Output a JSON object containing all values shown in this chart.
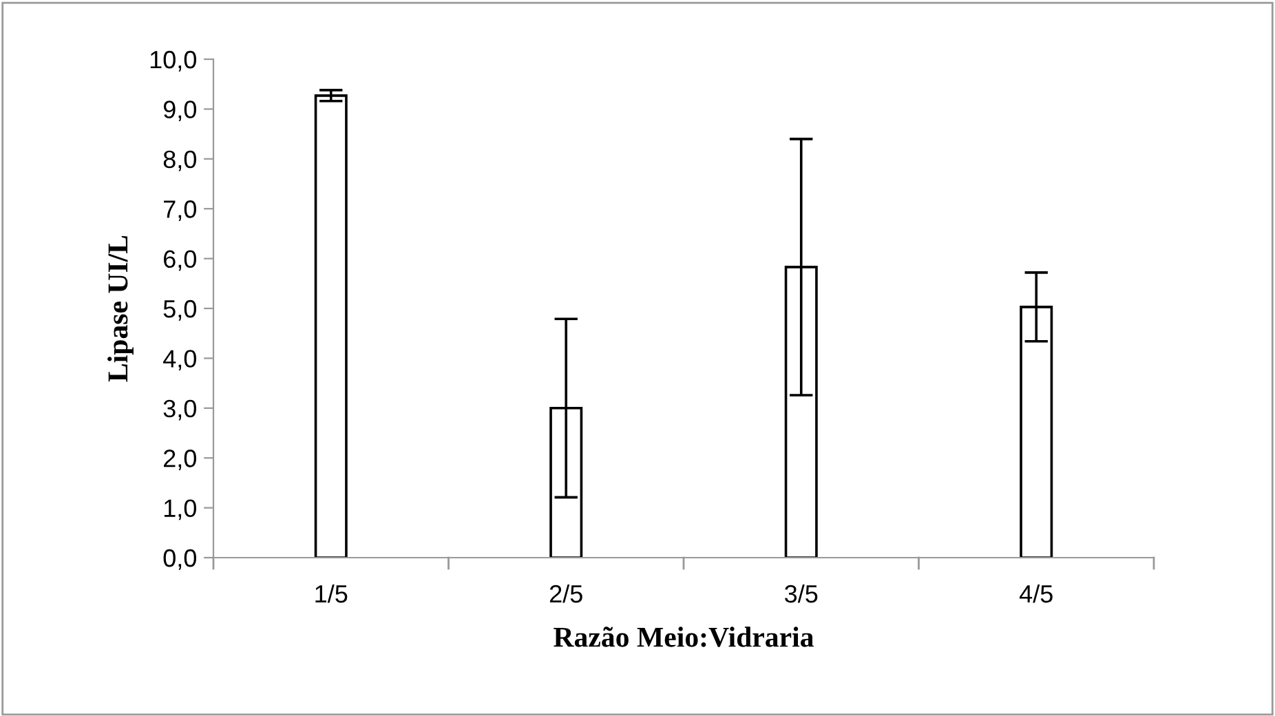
{
  "chart_data": {
    "type": "bar",
    "xlabel": "Razão Meio:Vidraria",
    "ylabel": "Lipase UI/L",
    "categories": [
      "1/5",
      "2/5",
      "3/5",
      "4/5"
    ],
    "values": [
      9.27,
      3.0,
      5.83,
      5.03
    ],
    "errors": [
      0.11,
      1.79,
      2.57,
      0.69
    ],
    "color": "#ffffff",
    "ylim": [
      0,
      10
    ],
    "yticks": [
      {
        "value": 0,
        "label": "0,0"
      },
      {
        "value": 1,
        "label": "1,0"
      },
      {
        "value": 2,
        "label": "2,0"
      },
      {
        "value": 3,
        "label": "3,0"
      },
      {
        "value": 4,
        "label": "4,0"
      },
      {
        "value": 5,
        "label": "5,0"
      },
      {
        "value": 6,
        "label": "6,0"
      },
      {
        "value": 7,
        "label": "7,0"
      },
      {
        "value": 8,
        "label": "8,0"
      },
      {
        "value": 9,
        "label": "9,0"
      },
      {
        "value": 10,
        "label": "10,0"
      }
    ],
    "grid": false,
    "legend": false
  }
}
